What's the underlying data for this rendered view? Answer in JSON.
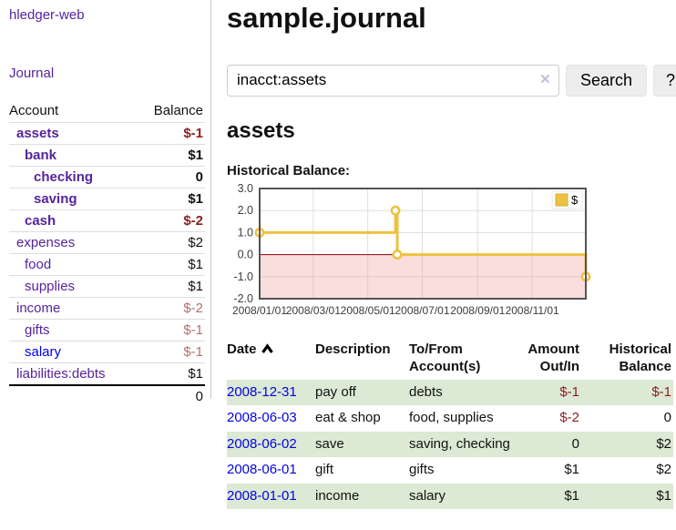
{
  "sidebar": {
    "brand": "hledger-web",
    "nav": {
      "journal": "Journal"
    },
    "accounts_table": {
      "headers": {
        "account": "Account",
        "balance": "Balance"
      },
      "rows": [
        {
          "label": "assets",
          "balance": "$-1",
          "indent": 1,
          "bold": true,
          "balance_style": "neg-strong",
          "link_style": "purple"
        },
        {
          "label": "bank",
          "balance": "$1",
          "indent": 2,
          "bold": true,
          "balance_style": null,
          "link_style": "purple"
        },
        {
          "label": "checking",
          "balance": "0",
          "indent": 3,
          "bold": true,
          "balance_style": null,
          "link_style": "purple"
        },
        {
          "label": "saving",
          "balance": "$1",
          "indent": 3,
          "bold": true,
          "balance_style": null,
          "link_style": "purple"
        },
        {
          "label": "cash",
          "balance": "$-2",
          "indent": 2,
          "bold": true,
          "balance_style": "neg-strong",
          "link_style": "purple"
        },
        {
          "label": "expenses",
          "balance": "$2",
          "indent": 1,
          "bold": false,
          "balance_style": null,
          "link_style": "purple"
        },
        {
          "label": "food",
          "balance": "$1",
          "indent": 2,
          "bold": false,
          "balance_style": null,
          "link_style": "purple"
        },
        {
          "label": "supplies",
          "balance": "$1",
          "indent": 2,
          "bold": false,
          "balance_style": null,
          "link_style": "purple"
        },
        {
          "label": "income",
          "balance": "$-2",
          "indent": 1,
          "bold": false,
          "balance_style": "neg-soft",
          "link_style": "purple"
        },
        {
          "label": "gifts",
          "balance": "$-1",
          "indent": 2,
          "bold": false,
          "balance_style": "neg-soft",
          "link_style": "purple"
        },
        {
          "label": "salary",
          "balance": "$-1",
          "indent": 2,
          "bold": false,
          "balance_style": "neg-soft",
          "link_style": "blue"
        },
        {
          "label": "liabilities:debts",
          "balance": "$1",
          "indent": 1,
          "bold": false,
          "balance_style": null,
          "link_style": "purple"
        }
      ],
      "total": "0"
    }
  },
  "header": {
    "title": "sample.journal"
  },
  "search": {
    "value": "inacct:assets",
    "clear_icon": "×",
    "search_label": "Search",
    "help_label": "?"
  },
  "account_page": {
    "title": "assets"
  },
  "chart_data": {
    "type": "line",
    "step": true,
    "title": "Historical Balance:",
    "series": [
      {
        "name": "$",
        "color": "#EDC240",
        "points": [
          [
            "2008-01-01",
            1
          ],
          [
            "2008-06-01",
            2
          ],
          [
            "2008-06-03",
            0
          ],
          [
            "2008-12-31",
            -1
          ]
        ]
      }
    ],
    "x_range": [
      "2008-01-01",
      "2008-12-31"
    ],
    "xticks": [
      {
        "date": "2008-01-01",
        "label": "2008/01/01"
      },
      {
        "date": "2008-03-01",
        "label": "2008/03/01"
      },
      {
        "date": "2008-05-01",
        "label": "2008/05/01"
      },
      {
        "date": "2008-07-01",
        "label": "2008/07/01"
      },
      {
        "date": "2008-09-01",
        "label": "2008/09/01"
      },
      {
        "date": "2008-11-01",
        "label": "2008/11/01"
      }
    ],
    "yticks": [
      3,
      2,
      1,
      0,
      -1,
      -2
    ],
    "ylim": [
      -2,
      3
    ],
    "grid": true,
    "legend_position": "top-right",
    "legend_label": "$",
    "negative_region_shaded": true,
    "zero_line_color": "#8b0000",
    "negative_fill_color": "rgba(240,160,160,0.35)"
  },
  "register": {
    "headers": {
      "date": "Date",
      "description": "Description",
      "accounts": "To/From Account(s)",
      "amount": "Amount Out/In",
      "balance": "Historical Balance"
    },
    "sort": {
      "column": "date",
      "direction": "ascending"
    },
    "rows": [
      {
        "date": "2008-12-31",
        "description": "pay off",
        "accounts": "debts",
        "amount": "$-1",
        "balance": "$-1",
        "amount_negative": true,
        "balance_negative": true,
        "shaded": true
      },
      {
        "date": "2008-06-03",
        "description": "eat & shop",
        "accounts": "food, supplies",
        "amount": "$-2",
        "balance": "0",
        "amount_negative": true,
        "balance_negative": false,
        "shaded": false
      },
      {
        "date": "2008-06-02",
        "description": "save",
        "accounts": "saving, checking",
        "amount": "0",
        "balance": "$2",
        "amount_negative": false,
        "balance_negative": false,
        "shaded": true
      },
      {
        "date": "2008-06-01",
        "description": "gift",
        "accounts": "gifts",
        "amount": "$1",
        "balance": "$2",
        "amount_negative": false,
        "balance_negative": false,
        "shaded": false
      },
      {
        "date": "2008-01-01",
        "description": "income",
        "accounts": "salary",
        "amount": "$1",
        "balance": "$1",
        "amount_negative": false,
        "balance_negative": false,
        "shaded": true
      }
    ]
  },
  "colors": {
    "link_purple": "#56249b",
    "link_blue": "#0000ee",
    "negative_strong": "#8f1d1d",
    "negative_soft": "#b4706e",
    "row_shade_green": "#dbe9d5",
    "series_gold": "#EDC240"
  }
}
